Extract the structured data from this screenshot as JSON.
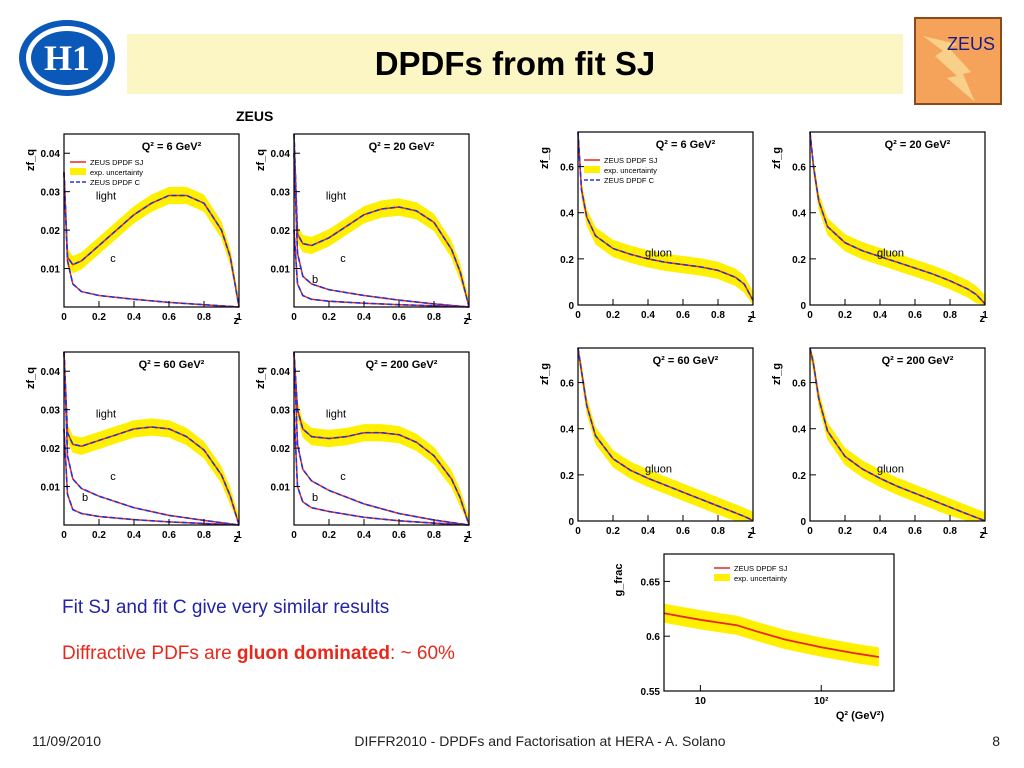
{
  "title": "DPDFs from fit SJ",
  "logos": {
    "right_text": "ZEUS"
  },
  "colors": {
    "title_bg": "#fbf6c3",
    "band": "#ffef00",
    "sj_line": "#e8281b",
    "c_line": "#2233dd",
    "bullet1": "#2323a8",
    "bullet2": "#e8281b"
  },
  "quark_figure": {
    "header": "ZEUS"
  },
  "chart_data": [
    {
      "type": "line",
      "title": "Q² = 6 GeV²",
      "ylabel": "zf_q",
      "xlabel": "z",
      "xlim": [
        0,
        1
      ],
      "ylim": [
        0,
        0.045
      ],
      "x_ticks": [
        "0",
        "0.2",
        "0.4",
        "0.6",
        "0.8",
        "1"
      ],
      "y_ticks": [
        "0.01",
        "0.02",
        "0.03",
        "0.04"
      ],
      "legend": [
        "ZEUS DPDF SJ",
        "exp. uncertainty",
        "ZEUS DPDF C"
      ],
      "legend_position": "top-left",
      "curves": [
        {
          "name": "light",
          "band": true,
          "x": [
            0,
            0.02,
            0.05,
            0.1,
            0.2,
            0.3,
            0.4,
            0.5,
            0.6,
            0.7,
            0.8,
            0.9,
            0.95,
            1
          ],
          "y": [
            0.035,
            0.013,
            0.011,
            0.012,
            0.016,
            0.02,
            0.024,
            0.027,
            0.029,
            0.029,
            0.027,
            0.02,
            0.013,
            0
          ]
        },
        {
          "name": "c",
          "band": false,
          "x": [
            0,
            0.02,
            0.05,
            0.1,
            0.2,
            0.4,
            0.6,
            0.8,
            1
          ],
          "y": [
            0.035,
            0.012,
            0.006,
            0.004,
            0.003,
            0.002,
            0.0012,
            0.0006,
            0
          ]
        }
      ]
    },
    {
      "type": "line",
      "title": "Q² = 20 GeV²",
      "ylabel": "zf_q",
      "xlabel": "z",
      "xlim": [
        0,
        1
      ],
      "ylim": [
        0,
        0.045
      ],
      "x_ticks": [
        "0",
        "0.2",
        "0.4",
        "0.6",
        "0.8",
        "1"
      ],
      "y_ticks": [
        "0.01",
        "0.02",
        "0.03",
        "0.04"
      ],
      "curves": [
        {
          "name": "light",
          "band": true,
          "x": [
            0,
            0.02,
            0.05,
            0.1,
            0.2,
            0.3,
            0.4,
            0.5,
            0.6,
            0.7,
            0.8,
            0.9,
            0.95,
            1
          ],
          "y": [
            0.045,
            0.019,
            0.0165,
            0.016,
            0.018,
            0.021,
            0.024,
            0.0255,
            0.026,
            0.025,
            0.022,
            0.015,
            0.009,
            0
          ]
        },
        {
          "name": "c",
          "band": false,
          "x": [
            0,
            0.02,
            0.05,
            0.1,
            0.2,
            0.4,
            0.6,
            0.8,
            1
          ],
          "y": [
            0.04,
            0.014,
            0.008,
            0.006,
            0.0045,
            0.003,
            0.0018,
            0.0008,
            0
          ]
        },
        {
          "name": "b",
          "band": false,
          "x": [
            0,
            0.02,
            0.05,
            0.1,
            0.2,
            0.4,
            0.6,
            0.8,
            1
          ],
          "y": [
            0.02,
            0.006,
            0.003,
            0.002,
            0.0015,
            0.001,
            0.0006,
            0.0003,
            0
          ]
        }
      ]
    },
    {
      "type": "line",
      "title": "Q² = 60 GeV²",
      "ylabel": "zf_q",
      "xlabel": "z",
      "xlim": [
        0,
        1
      ],
      "ylim": [
        0,
        0.045
      ],
      "x_ticks": [
        "0",
        "0.2",
        "0.4",
        "0.6",
        "0.8",
        "1"
      ],
      "y_ticks": [
        "0.01",
        "0.02",
        "0.03",
        "0.04"
      ],
      "curves": [
        {
          "name": "light",
          "band": true,
          "x": [
            0,
            0.02,
            0.05,
            0.1,
            0.2,
            0.3,
            0.4,
            0.5,
            0.6,
            0.7,
            0.8,
            0.9,
            0.95,
            1
          ],
          "y": [
            0.045,
            0.024,
            0.021,
            0.0205,
            0.022,
            0.0235,
            0.025,
            0.0255,
            0.025,
            0.023,
            0.0195,
            0.013,
            0.0075,
            0
          ]
        },
        {
          "name": "c",
          "band": false,
          "x": [
            0,
            0.02,
            0.05,
            0.1,
            0.2,
            0.4,
            0.6,
            0.8,
            1
          ],
          "y": [
            0.045,
            0.018,
            0.012,
            0.0095,
            0.0075,
            0.0045,
            0.0025,
            0.0012,
            0
          ]
        },
        {
          "name": "b",
          "band": false,
          "x": [
            0,
            0.02,
            0.05,
            0.1,
            0.2,
            0.4,
            0.6,
            0.8,
            1
          ],
          "y": [
            0.025,
            0.008,
            0.004,
            0.003,
            0.0022,
            0.0014,
            0.0008,
            0.0004,
            0
          ]
        }
      ]
    },
    {
      "type": "line",
      "title": "Q² = 200 GeV²",
      "ylabel": "zf_q",
      "xlabel": "z",
      "xlim": [
        0,
        1
      ],
      "ylim": [
        0,
        0.045
      ],
      "x_ticks": [
        "0",
        "0.2",
        "0.4",
        "0.6",
        "0.8",
        "1"
      ],
      "y_ticks": [
        "0.01",
        "0.02",
        "0.03",
        "0.04"
      ],
      "curves": [
        {
          "name": "light",
          "band": true,
          "x": [
            0,
            0.02,
            0.05,
            0.1,
            0.2,
            0.3,
            0.4,
            0.5,
            0.6,
            0.7,
            0.8,
            0.9,
            0.95,
            1
          ],
          "y": [
            0.045,
            0.03,
            0.025,
            0.023,
            0.0225,
            0.023,
            0.024,
            0.024,
            0.0235,
            0.0215,
            0.018,
            0.012,
            0.007,
            0
          ]
        },
        {
          "name": "c",
          "band": false,
          "x": [
            0,
            0.02,
            0.05,
            0.1,
            0.2,
            0.4,
            0.6,
            0.8,
            1
          ],
          "y": [
            0.045,
            0.021,
            0.0145,
            0.0115,
            0.009,
            0.0055,
            0.003,
            0.0013,
            0
          ]
        },
        {
          "name": "b",
          "band": false,
          "x": [
            0,
            0.02,
            0.05,
            0.1,
            0.2,
            0.4,
            0.6,
            0.8,
            1
          ],
          "y": [
            0.03,
            0.01,
            0.006,
            0.0045,
            0.0035,
            0.002,
            0.0011,
            0.0005,
            0
          ]
        }
      ]
    },
    {
      "type": "line",
      "title": "Q² = 6 GeV²",
      "ylabel": "zf_g",
      "xlabel": "z",
      "xlim": [
        0,
        1
      ],
      "ylim": [
        0,
        0.75
      ],
      "x_ticks": [
        "0",
        "0.2",
        "0.4",
        "0.6",
        "0.8",
        "1"
      ],
      "y_ticks": [
        "0",
        "0.2",
        "0.4",
        "0.6"
      ],
      "legend": [
        "ZEUS DPDF SJ",
        "exp. uncertainty",
        "ZEUS DPDF C"
      ],
      "legend_position": "top-left",
      "curves": [
        {
          "name": "gluon",
          "band": true,
          "x": [
            0,
            0.02,
            0.05,
            0.1,
            0.2,
            0.3,
            0.4,
            0.5,
            0.6,
            0.7,
            0.8,
            0.9,
            0.95,
            1
          ],
          "y": [
            0.75,
            0.5,
            0.38,
            0.3,
            0.245,
            0.22,
            0.2,
            0.185,
            0.175,
            0.165,
            0.15,
            0.12,
            0.09,
            0.02
          ]
        }
      ]
    },
    {
      "type": "line",
      "title": "Q² = 20 GeV²",
      "ylabel": "zf_g",
      "xlabel": "z",
      "xlim": [
        0,
        1
      ],
      "ylim": [
        0,
        0.75
      ],
      "x_ticks": [
        "0",
        "0.2",
        "0.4",
        "0.6",
        "0.8",
        "1"
      ],
      "y_ticks": [
        "0",
        "0.2",
        "0.4",
        "0.6"
      ],
      "curves": [
        {
          "name": "gluon",
          "band": true,
          "x": [
            0,
            0.02,
            0.05,
            0.1,
            0.2,
            0.3,
            0.4,
            0.5,
            0.6,
            0.7,
            0.8,
            0.9,
            0.95,
            1
          ],
          "y": [
            0.75,
            0.6,
            0.45,
            0.34,
            0.27,
            0.235,
            0.21,
            0.185,
            0.16,
            0.135,
            0.105,
            0.07,
            0.045,
            0.005
          ]
        }
      ]
    },
    {
      "type": "line",
      "title": "Q² = 60 GeV²",
      "ylabel": "zf_g",
      "xlabel": "z",
      "xlim": [
        0,
        1
      ],
      "ylim": [
        0,
        0.75
      ],
      "x_ticks": [
        "0",
        "0.2",
        "0.4",
        "0.6",
        "0.8",
        "1"
      ],
      "y_ticks": [
        "0",
        "0.2",
        "0.4",
        "0.6"
      ],
      "curves": [
        {
          "name": "gluon",
          "band": true,
          "x": [
            0,
            0.02,
            0.05,
            0.1,
            0.2,
            0.3,
            0.4,
            0.5,
            0.6,
            0.7,
            0.8,
            0.9,
            0.95,
            1
          ],
          "y": [
            0.75,
            0.65,
            0.5,
            0.37,
            0.27,
            0.22,
            0.185,
            0.155,
            0.125,
            0.095,
            0.065,
            0.035,
            0.02,
            0.002
          ]
        }
      ]
    },
    {
      "type": "line",
      "title": "Q² = 200 GeV²",
      "ylabel": "zf_g",
      "xlabel": "z",
      "xlim": [
        0,
        1
      ],
      "ylim": [
        0,
        0.75
      ],
      "x_ticks": [
        "0",
        "0.2",
        "0.4",
        "0.6",
        "0.8",
        "1"
      ],
      "y_ticks": [
        "0",
        "0.2",
        "0.4",
        "0.6"
      ],
      "curves": [
        {
          "name": "gluon",
          "band": true,
          "x": [
            0,
            0.02,
            0.05,
            0.1,
            0.2,
            0.3,
            0.4,
            0.5,
            0.6,
            0.7,
            0.8,
            0.9,
            0.95,
            1
          ],
          "y": [
            0.75,
            0.68,
            0.53,
            0.39,
            0.28,
            0.225,
            0.185,
            0.15,
            0.12,
            0.09,
            0.06,
            0.03,
            0.015,
            0.001
          ]
        }
      ]
    },
    {
      "type": "line",
      "ylabel": "g_frac",
      "xlabel": "Q² (GeV²)",
      "xscale": "log",
      "xlim": [
        5,
        400
      ],
      "ylim": [
        0.55,
        0.675
      ],
      "x_ticks": [
        "10",
        "10²"
      ],
      "y_ticks": [
        "0.55",
        "0.6",
        "0.65"
      ],
      "legend": [
        "ZEUS DPDF SJ",
        "exp. uncertainty"
      ],
      "legend_position": "top-right",
      "curves": [
        {
          "name": "ZEUS DPDF SJ",
          "band": true,
          "x": [
            5,
            7,
            10,
            15,
            20,
            30,
            50,
            100,
            200,
            300
          ],
          "y": [
            0.621,
            0.618,
            0.615,
            0.612,
            0.61,
            0.604,
            0.597,
            0.59,
            0.584,
            0.581
          ]
        }
      ]
    }
  ],
  "bullets": {
    "line1": "Fit SJ and fit C give very similar results",
    "line2_prefix": "Diffractive PDFs are ",
    "line2_bold": "gluon dominated",
    "line2_suffix": ": ~ 60%"
  },
  "footer": {
    "date": "11/09/2010",
    "center": "DIFFR2010  -  DPDFs and Factorisation at HERA  -  A. Solano",
    "page": "8"
  }
}
